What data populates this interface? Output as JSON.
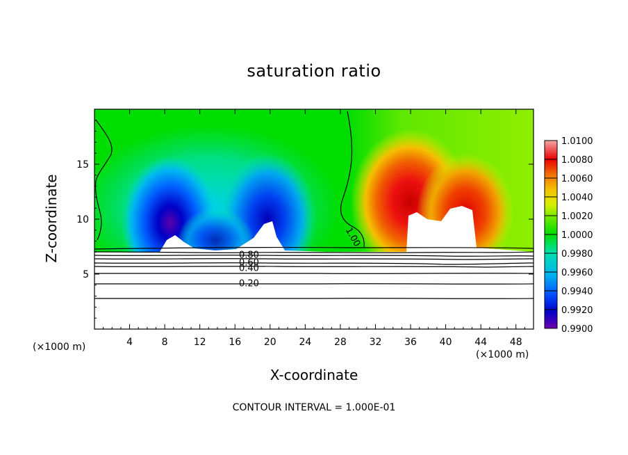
{
  "chart_data": {
    "type": "heatmap",
    "title": "saturation ratio",
    "xlabel": "X-coordinate",
    "ylabel": "Z-coordinate",
    "x_unit_left": "(×1000 m)",
    "x_unit_right": "(×1000 m)",
    "xlim": [
      0,
      50
    ],
    "ylim": [
      0,
      20
    ],
    "x_ticks": [
      4,
      8,
      12,
      16,
      20,
      24,
      28,
      32,
      36,
      40,
      44,
      48
    ],
    "y_ticks": [
      5,
      10,
      15
    ],
    "footer": "CONTOUR INTERVAL = 1.000E-01",
    "colorbar": {
      "range": [
        0.99,
        1.01
      ],
      "labels": [
        "1.0100",
        "1.0080",
        "1.0060",
        "1.0040",
        "1.0020",
        "1.0000",
        "0.9980",
        "0.9960",
        "0.9940",
        "0.9920",
        "0.9900"
      ],
      "colors": [
        "#f4a6a6",
        "#ee4040",
        "#ea0000",
        "#f08000",
        "#f5d000",
        "#d6ee00",
        "#00dd00",
        "#00e0a0",
        "#00bbe8",
        "#0060ff",
        "#0000d0",
        "#7000b0"
      ]
    },
    "contour_labels": [
      {
        "text": "0.80",
        "x": 17.6,
        "z": 6.8
      },
      {
        "text": "0.60",
        "x": 17.6,
        "z": 6.1
      },
      {
        "text": "0.40",
        "x": 17.6,
        "z": 5.6
      },
      {
        "text": "0.20",
        "x": 17.6,
        "z": 4.2
      },
      {
        "text": "1.00",
        "x": 29.5,
        "z": 8.4
      }
    ],
    "field_features": [
      {
        "kind": "low",
        "x": 8.5,
        "z": 9.0,
        "value": 0.9905
      },
      {
        "kind": "low",
        "x": 19.5,
        "z": 9.5,
        "value": 0.9915
      },
      {
        "kind": "low",
        "x": 13.5,
        "z": 8.5,
        "value": 0.9935
      },
      {
        "kind": "high",
        "x": 35.5,
        "z": 12.0,
        "value": 1.0075
      },
      {
        "kind": "high",
        "x": 42.0,
        "z": 10.5,
        "value": 1.0055
      },
      {
        "kind": "neutral",
        "x": 5.0,
        "z": 17.0,
        "value": 1.0
      }
    ]
  }
}
